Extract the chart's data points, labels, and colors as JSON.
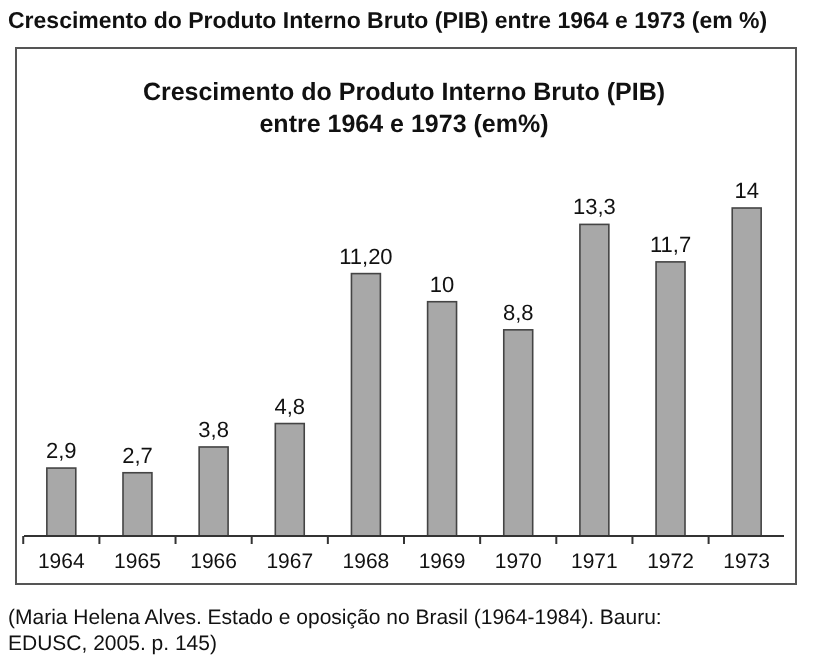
{
  "chart_data": {
    "type": "bar",
    "title": "Crescimento do Produto Interno Bruto (PIB) entre 1964 e 1973 (em %)",
    "subtitle": "Crescimento do Produto Interno Bruto (PIB)\nentre 1964 e 1973 (em%)",
    "categories": [
      "1964",
      "1965",
      "1966",
      "1967",
      "1968",
      "1969",
      "1970",
      "1971",
      "1972",
      "1973"
    ],
    "values": [
      2.9,
      2.7,
      3.8,
      4.8,
      11.2,
      10,
      8.8,
      13.3,
      11.7,
      14
    ],
    "value_labels": [
      "2,9",
      "2,7",
      "3,8",
      "4,8",
      "11,20",
      "10",
      "8,8",
      "13,3",
      "11,7",
      "14"
    ],
    "color": "#a8a8a8",
    "relative": false,
    "annotations": [
      "(Maria Helena Alves. Estado e oposição no Brasil (1964-1984). Bauru:\nEDUSC, 2005. p. 145)"
    ]
  }
}
